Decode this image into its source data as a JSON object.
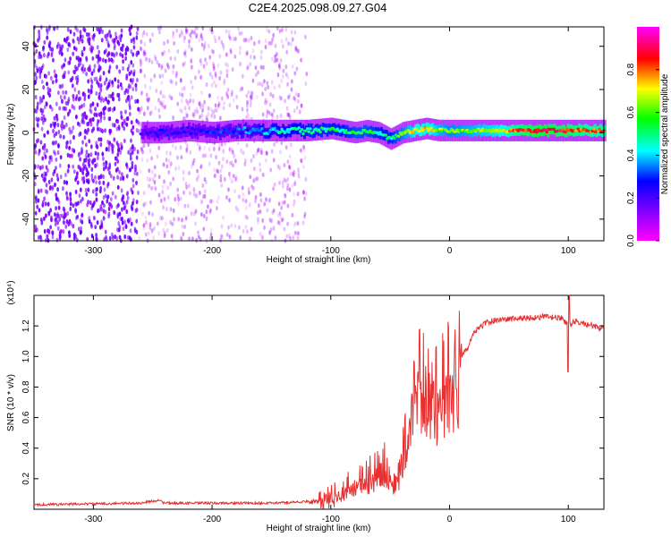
{
  "figure": {
    "title": "C2E4.2025.098.09.27.G04"
  },
  "chart_data": [
    {
      "type": "heatmap",
      "title": "C2E4.2025.098.09.27.G04",
      "xlabel": "Height of straight line (km)",
      "ylabel": "Frequency (Hz)",
      "xlim": [
        -350,
        130
      ],
      "ylim": [
        -50,
        49
      ],
      "xticks": [
        -300,
        -200,
        -100,
        0,
        100
      ],
      "yticks": [
        -40,
        -20,
        0,
        20,
        40
      ],
      "colorbar": {
        "label": "Normalized spectral amplitude",
        "range": [
          0,
          1
        ],
        "ticks": [
          0.0,
          0.2,
          0.4,
          0.6,
          0.8
        ],
        "colormap": [
          "#ff00ff",
          "#8000ff",
          "#0000ff",
          "#00ffff",
          "#00ff00",
          "#ffff00",
          "#ff0000",
          "#ff00ff"
        ]
      },
      "ridge": {
        "x": [
          -260,
          -240,
          -220,
          -200,
          -180,
          -160,
          -140,
          -120,
          -100,
          -90,
          -80,
          -70,
          -60,
          -50,
          -40,
          -30,
          -20,
          -10,
          0,
          20,
          40,
          60,
          80,
          100,
          120,
          130
        ],
        "frequency": [
          0,
          0,
          1,
          0,
          1,
          1,
          1,
          1,
          2,
          1,
          0,
          1,
          0,
          -3,
          0,
          1,
          2,
          1,
          1,
          1,
          1,
          1,
          1,
          1,
          1,
          1
        ],
        "amplitude": [
          0.2,
          0.25,
          0.25,
          0.28,
          0.3,
          0.4,
          0.45,
          0.5,
          0.5,
          0.5,
          0.55,
          0.55,
          0.5,
          0.5,
          0.6,
          0.7,
          0.75,
          0.65,
          0.6,
          0.65,
          0.7,
          0.85,
          0.9,
          0.85,
          0.8,
          0.8
        ]
      }
    },
    {
      "type": "line",
      "xlabel": "Height of straight line (km)",
      "ylabel": "SNR (10 * v/v)",
      "y_multiplier": "(x10⁴)",
      "xlim": [
        -350,
        130
      ],
      "ylim": [
        0,
        1.4
      ],
      "xticks": [
        -300,
        -200,
        -100,
        0,
        100
      ],
      "yticks": [
        0.2,
        0.4,
        0.6,
        0.8,
        1.0,
        1.2
      ],
      "color": "#e83030",
      "series": [
        {
          "x": [
            -350,
            -300,
            -260,
            -245,
            -240,
            -200,
            -150,
            -120,
            -100,
            -90,
            -80,
            -70,
            -60,
            -55,
            -50,
            -45,
            -40,
            -35,
            -30,
            -25,
            -20,
            -15,
            -10,
            -5,
            0,
            5,
            10,
            15,
            20,
            30,
            40,
            60,
            80,
            95,
            100,
            105,
            120,
            130
          ],
          "y": [
            0.03,
            0.035,
            0.04,
            0.06,
            0.04,
            0.04,
            0.04,
            0.05,
            0.08,
            0.12,
            0.18,
            0.22,
            0.25,
            0.3,
            0.2,
            0.12,
            0.35,
            0.55,
            0.8,
            0.85,
            0.8,
            0.75,
            0.8,
            0.85,
            0.9,
            0.95,
            1.0,
            1.05,
            1.15,
            1.22,
            1.24,
            1.25,
            1.26,
            1.25,
            1.2,
            1.23,
            1.2,
            1.18
          ]
        }
      ]
    }
  ]
}
